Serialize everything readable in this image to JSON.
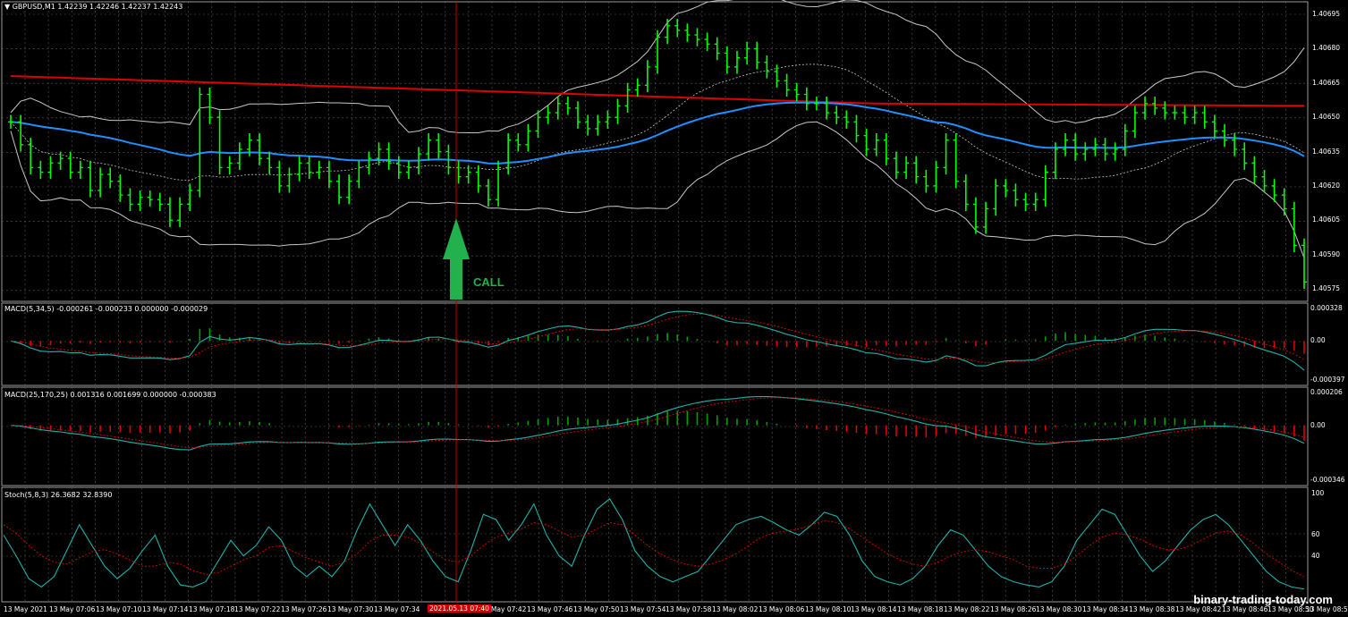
{
  "colors": {
    "background": "#000000",
    "grid": "#5a5a5a",
    "candle": "#00ff00",
    "bollinger": "#c8c8c8",
    "ma_slow": "#e00000",
    "ma_mid": "#1e90ff",
    "macd_line": "#20b2aa",
    "signal_line": "#e00000",
    "hist_positive": "#00a000",
    "hist_negative": "#e00000",
    "stoch_main": "#20b2aa",
    "stoch_signal": "#e00000",
    "call_arrow": "#22b14c",
    "marker_line": "#c00000"
  },
  "chart_data": [
    {
      "type": "ohlc",
      "title": "GBPUSD,M1",
      "header_values": "1.42239 1.42246 1.42237 1.42243",
      "y_ticks": [
        "1.40695",
        "1.40680",
        "1.40665",
        "1.40650",
        "1.40635",
        "1.40620",
        "1.40605",
        "1.40590",
        "1.40575"
      ],
      "ylim": [
        1.4057,
        1.407
      ],
      "close": [
        1.40648,
        1.40638,
        1.40628,
        1.40626,
        1.4063,
        1.40632,
        1.40626,
        1.40628,
        1.40618,
        1.40625,
        1.40622,
        1.40616,
        1.40612,
        1.40615,
        1.40614,
        1.40612,
        1.40605,
        1.40612,
        1.40618,
        1.4066,
        1.4065,
        1.40628,
        1.4063,
        1.40636,
        1.4064,
        1.40632,
        1.40628,
        1.4062,
        1.40625,
        1.4063,
        1.40626,
        1.40628,
        1.40622,
        1.40615,
        1.40622,
        1.40628,
        1.40632,
        1.40636,
        1.4063,
        1.40626,
        1.40628,
        1.40634,
        1.4064,
        1.40635,
        1.40628,
        1.40624,
        1.40626,
        1.4062,
        1.40614,
        1.40628,
        1.4064,
        1.40638,
        1.40644,
        1.4065,
        1.40652,
        1.40656,
        1.40654,
        1.40648,
        1.40645,
        1.40648,
        1.4065,
        1.40655,
        1.40662,
        1.40664,
        1.40672,
        1.40685,
        1.4069,
        1.40688,
        1.40686,
        1.40684,
        1.40682,
        1.40678,
        1.40672,
        1.40676,
        1.4068,
        1.40674,
        1.4067,
        1.40666,
        1.40662,
        1.4066,
        1.40656,
        1.40656,
        1.40652,
        1.4065,
        1.40648,
        1.40642,
        1.40636,
        1.4064,
        1.40632,
        1.40626,
        1.4063,
        1.40624,
        1.4062,
        1.40628,
        1.4064,
        1.40622,
        1.40612,
        1.40602,
        1.4061,
        1.4062,
        1.40618,
        1.40614,
        1.40612,
        1.40614,
        1.40626,
        1.40636,
        1.4064,
        1.40634,
        1.40636,
        1.40638,
        1.40634,
        1.40636,
        1.40644,
        1.40652,
        1.40656,
        1.40654,
        1.40652,
        1.40652,
        1.4065,
        1.40652,
        1.40648,
        1.40644,
        1.4064,
        1.40636,
        1.4063,
        1.40624,
        1.4062,
        1.40616,
        1.4061,
        1.40594,
        1.40578
      ],
      "ma_slow": [
        1.40668,
        1.40662,
        1.40656,
        1.40655
      ],
      "marker_at_label": "13 May 07:40"
    },
    {
      "type": "line+histogram",
      "title": "MACD(5,34,5)",
      "header_values": "-0.000261 -0.000233 0.000000 -0.000029",
      "y_ticks": [
        "0.000328",
        "0.00",
        "-0.000397"
      ],
      "ylim": [
        -0.000397,
        0.000328
      ]
    },
    {
      "type": "line+histogram",
      "title": "MACD(25,170,25)",
      "header_values": "0.001316 0.001699 0.000000 -0.000383",
      "y_ticks": [
        "0.000206",
        "0.00",
        "-0.000346"
      ],
      "ylim": [
        -0.000346,
        0.000206
      ]
    },
    {
      "type": "line",
      "title": "Stoch(5,8,3)",
      "header_values": "26.3682 32.8390",
      "y_ticks": [
        "100",
        "60",
        "40"
      ],
      "ylim": [
        0,
        100
      ],
      "main": [
        60,
        40,
        18,
        10,
        20,
        45,
        70,
        50,
        30,
        18,
        28,
        45,
        60,
        30,
        12,
        10,
        15,
        35,
        55,
        40,
        50,
        68,
        55,
        30,
        20,
        30,
        20,
        35,
        65,
        90,
        70,
        50,
        70,
        55,
        35,
        20,
        15,
        45,
        80,
        75,
        55,
        70,
        90,
        60,
        40,
        30,
        60,
        85,
        95,
        75,
        45,
        30,
        20,
        15,
        20,
        25,
        40,
        55,
        70,
        75,
        78,
        72,
        65,
        60,
        70,
        82,
        78,
        60,
        35,
        20,
        15,
        12,
        18,
        30,
        50,
        65,
        60,
        45,
        30,
        20,
        15,
        12,
        10,
        15,
        30,
        55,
        70,
        85,
        80,
        60,
        40,
        25,
        35,
        50,
        65,
        75,
        80,
        70,
        55,
        40,
        25,
        15,
        10,
        8
      ],
      "signal": [
        70,
        62,
        50,
        40,
        34,
        32,
        38,
        44,
        46,
        42,
        36,
        30,
        30,
        34,
        32,
        26,
        22,
        24,
        30,
        36,
        40,
        48,
        50,
        44,
        38,
        34,
        30,
        34,
        42,
        54,
        60,
        60,
        58,
        52,
        44,
        36,
        34,
        40,
        50,
        58,
        62,
        66,
        72,
        70,
        64,
        58,
        60,
        66,
        72,
        70,
        60,
        50,
        42,
        36,
        32,
        30,
        32,
        36,
        42,
        50,
        58,
        62,
        64,
        66,
        70,
        74,
        72,
        66,
        58,
        50,
        42,
        36,
        32,
        30,
        34,
        40,
        44,
        46,
        44,
        40,
        36,
        30,
        28,
        28,
        32,
        40,
        50,
        58,
        62,
        60,
        56,
        50,
        46,
        46,
        50,
        56,
        62,
        64,
        60,
        52,
        42,
        34,
        26,
        20
      ]
    }
  ],
  "x_ticks": [
    "13 May 2021",
    "13 May 07:06",
    "13 May 07:10",
    "13 May 07:14",
    "13 May 07:18",
    "13 May 07:22",
    "13 May 07:26",
    "13 May 07:30",
    "13 May 07:34",
    "13 May 07:42",
    "13 May 07:46",
    "13 May 07:50",
    "13 May 07:54",
    "13 May 07:58",
    "13 May 08:02",
    "13 May 08:06",
    "13 May 08:10",
    "13 May 08:14",
    "13 May 08:18",
    "13 May 08:22",
    "13 May 08:26",
    "13 May 08:30",
    "13 May 08:34",
    "13 May 08:38",
    "13 May 08:42",
    "13 May 08:46",
    "13 May 08:50",
    "13 May 08:5"
  ],
  "highlighted_time": "2021.05.13 07:40",
  "annotation": {
    "call_label": "CALL"
  },
  "watermark": "binary-trading-today.com"
}
